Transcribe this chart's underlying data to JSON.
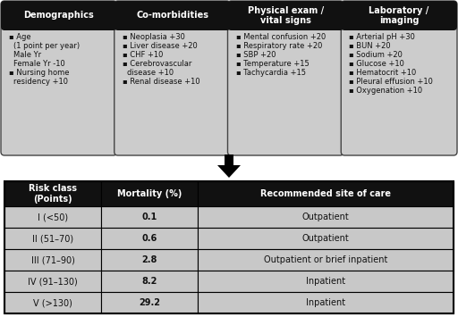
{
  "boxes": [
    {
      "title": "Demographics",
      "items": [
        {
          "bullet": true,
          "text": "Age"
        },
        {
          "bullet": false,
          "indent": true,
          "text": "(1 point per year)"
        },
        {
          "bullet": false,
          "indent": true,
          "text": "Male Yr"
        },
        {
          "bullet": false,
          "indent": true,
          "text": "Female Yr -10"
        },
        {
          "bullet": true,
          "text": "Nursing home"
        },
        {
          "bullet": false,
          "indent": true,
          "text": "residency +10"
        }
      ]
    },
    {
      "title": "Co-morbidities",
      "items": [
        {
          "bullet": true,
          "text": "Neoplasia +30"
        },
        {
          "bullet": true,
          "text": "Liver disease +20"
        },
        {
          "bullet": true,
          "text": "CHF +10"
        },
        {
          "bullet": true,
          "text": "Cerebrovascular"
        },
        {
          "bullet": false,
          "indent": true,
          "text": "disease +10"
        },
        {
          "bullet": true,
          "text": "Renal disease +10"
        }
      ]
    },
    {
      "title": "Physical exam /\nvital signs",
      "items": [
        {
          "bullet": true,
          "text": "Mental confusion +20"
        },
        {
          "bullet": true,
          "text": "Respiratory rate +20"
        },
        {
          "bullet": true,
          "text": "SBP +20"
        },
        {
          "bullet": true,
          "text": "Temperature +15"
        },
        {
          "bullet": true,
          "text": "Tachycardia +15"
        }
      ]
    },
    {
      "title": "Laboratory /\nimaging",
      "items": [
        {
          "bullet": true,
          "text": "Arterial pH +30"
        },
        {
          "bullet": true,
          "text": "BUN +20"
        },
        {
          "bullet": true,
          "text": "Sodium +20"
        },
        {
          "bullet": true,
          "text": "Glucose +10"
        },
        {
          "bullet": true,
          "text": "Hematocrit +10"
        },
        {
          "bullet": true,
          "text": "Pleural effusion +10"
        },
        {
          "bullet": true,
          "text": "Oxygenation +10"
        }
      ]
    }
  ],
  "table_headers": [
    "Risk class\n(Points)",
    "Mortality (%)",
    "Recommended site of care"
  ],
  "table_rows": [
    [
      "I (<50)",
      "0.1",
      "Outpatient"
    ],
    [
      "II (51–70)",
      "0.6",
      "Outpatient"
    ],
    [
      "III (71–90)",
      "2.8",
      "Outpatient or brief inpatient"
    ],
    [
      "IV (91–130)",
      "8.2",
      "Inpatient"
    ],
    [
      "V (>130)",
      "29.2",
      "Inpatient"
    ]
  ],
  "box_bg": "#cccccc",
  "box_title_bg": "#111111",
  "box_title_color": "#ffffff",
  "table_header_bg": "#111111",
  "table_header_color": "#ffffff",
  "table_row_bg_odd": "#c8c8c8",
  "table_row_bg_even": "#c8c8c8",
  "table_border": "#000000",
  "fig_bg": "#ffffff",
  "bullet": "▪"
}
